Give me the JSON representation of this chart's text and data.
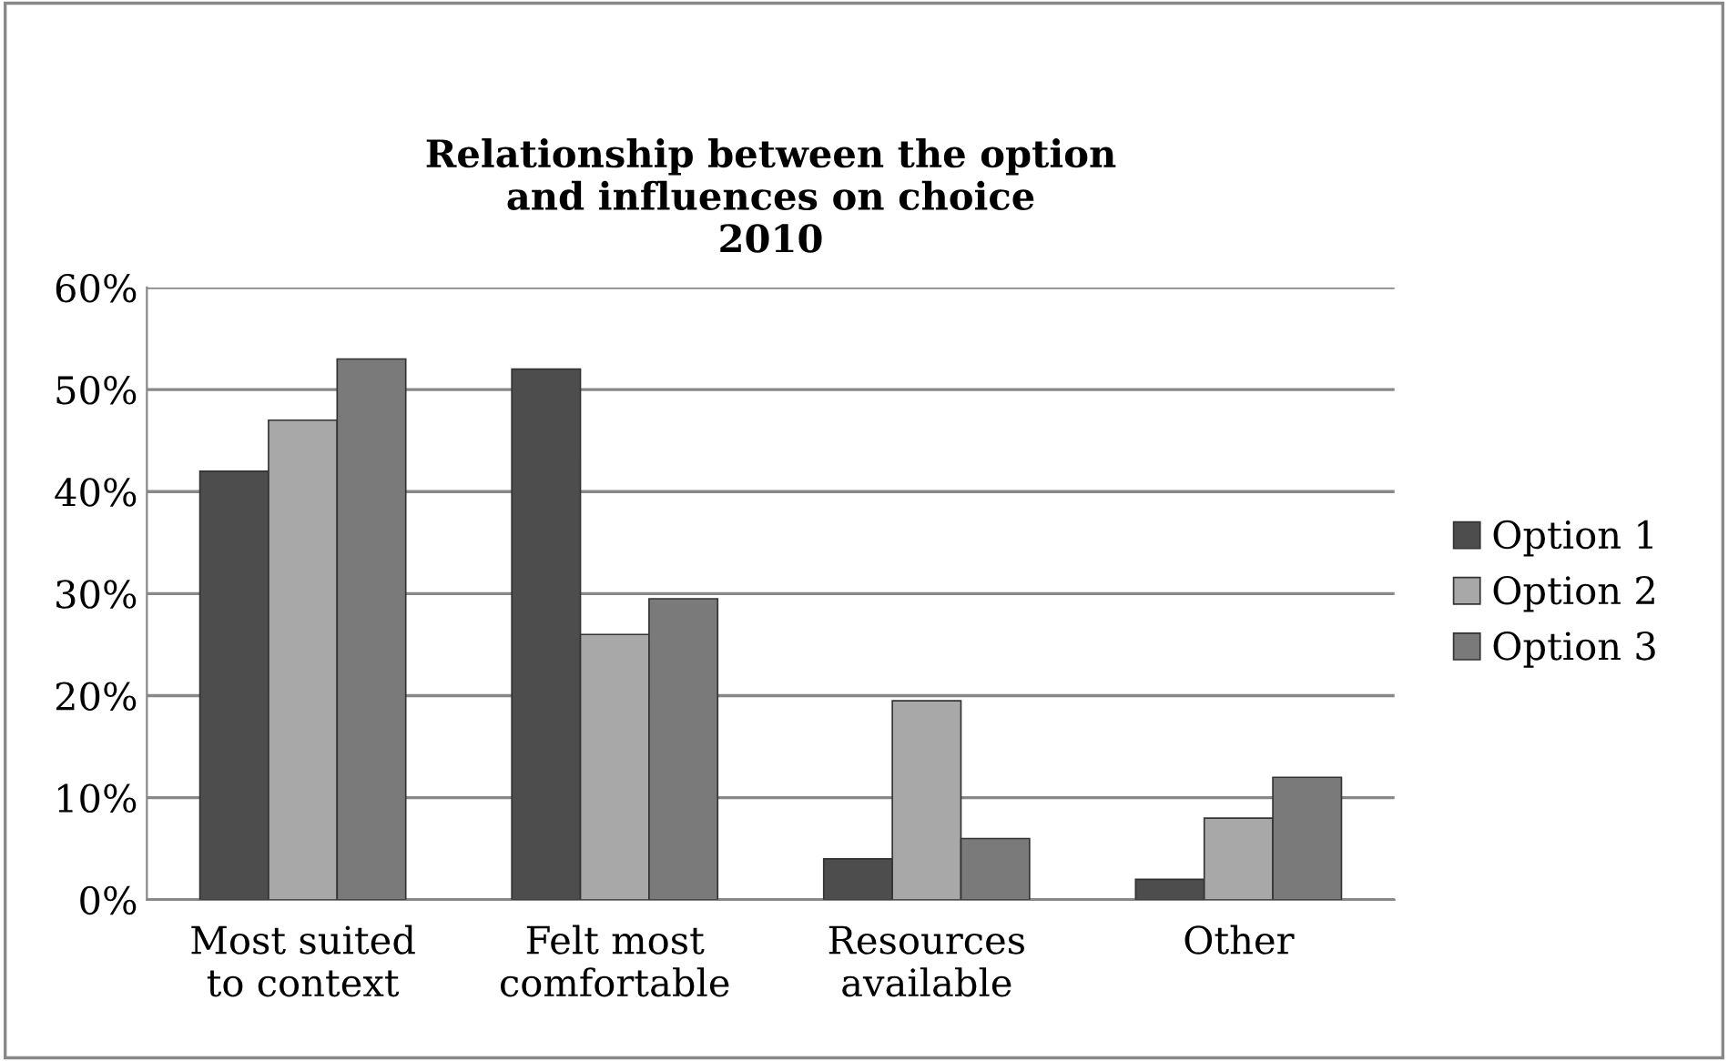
{
  "chart_data": {
    "type": "bar",
    "title": "Relationship between the option\nand influences on choice\n2010",
    "categories": [
      "Most suited\nto context",
      "Felt most\ncomfortable",
      "Resources\navailable",
      "Other"
    ],
    "series": [
      {
        "name": "Option 1",
        "color": "#4d4d4d",
        "values": [
          0.42,
          0.52,
          0.04,
          0.02
        ]
      },
      {
        "name": "Option 2",
        "color": "#a8a8a8",
        "values": [
          0.47,
          0.26,
          0.195,
          0.08
        ]
      },
      {
        "name": "Option 3",
        "color": "#7a7a7a",
        "values": [
          0.53,
          0.295,
          0.06,
          0.12
        ]
      }
    ],
    "ylim": [
      0,
      0.6
    ],
    "yticks": [
      {
        "value": 0,
        "label": "0%"
      },
      {
        "value": 0.1,
        "label": "10%"
      },
      {
        "value": 0.2,
        "label": "20%"
      },
      {
        "value": 0.3,
        "label": "30%"
      },
      {
        "value": 0.4,
        "label": "40%"
      },
      {
        "value": 0.5,
        "label": "50%"
      },
      {
        "value": 0.6,
        "label": "60%"
      }
    ],
    "grid": "y",
    "legend": "right"
  }
}
